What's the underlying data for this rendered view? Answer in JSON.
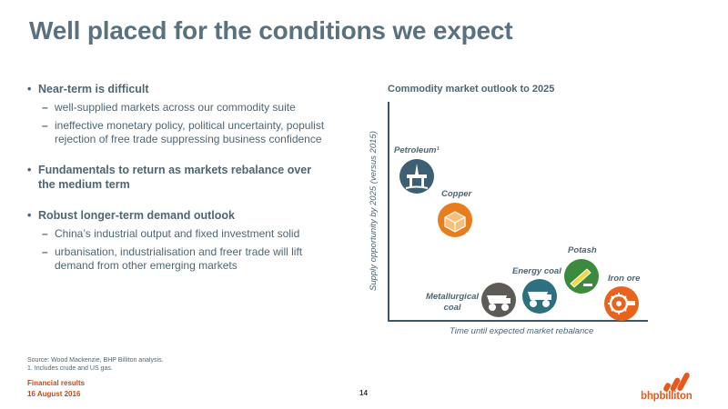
{
  "title": "Well placed for the conditions we expect",
  "bullets": [
    {
      "text": "Near-term is difficult",
      "subs": [
        "well-supplied markets across our commodity suite",
        "ineffective monetary policy, political uncertainty, populist rejection of free trade suppressing business confidence"
      ]
    },
    {
      "text": "Fundamentals to return as markets rebalance over the medium term",
      "subs": []
    },
    {
      "text": "Robust longer-term demand outlook",
      "subs": [
        "China’s industrial output and fixed investment solid",
        "urbanisation, industrialisation and freer trade will lift demand from other emerging markets"
      ]
    }
  ],
  "chart": {
    "title": "Commodity market outlook to 2025",
    "ylabel": "Supply opportunity by 2025 (versus 2015)",
    "xlabel": "Time until expected market rebalance",
    "commodities": [
      {
        "name": "Petroleum¹",
        "color": "#3d5f73",
        "icon": "oil-rig-icon"
      },
      {
        "name": "Copper",
        "color": "#e87d1e",
        "icon": "copper-bars-icon"
      },
      {
        "name": "Metallurgical coal",
        "color": "#5e5a55",
        "icon": "haul-truck-icon"
      },
      {
        "name": "Energy coal",
        "color": "#2e6f80",
        "icon": "haul-truck-icon"
      },
      {
        "name": "Potash",
        "color": "#3b8a3e",
        "icon": "conveyor-icon"
      },
      {
        "name": "Iron ore",
        "color": "#e8641e",
        "icon": "reclaimer-wheel-icon"
      }
    ]
  },
  "source": "Source: Wood Mackenzie, BHP Billiton analysis.",
  "footnote": "1. Includes crude and US gas.",
  "footer": {
    "line1": "Financial results",
    "line2": "16 August 2016"
  },
  "page_number": "14",
  "logo_text": "bhpbilliton",
  "brand_color": "#e55a1c"
}
